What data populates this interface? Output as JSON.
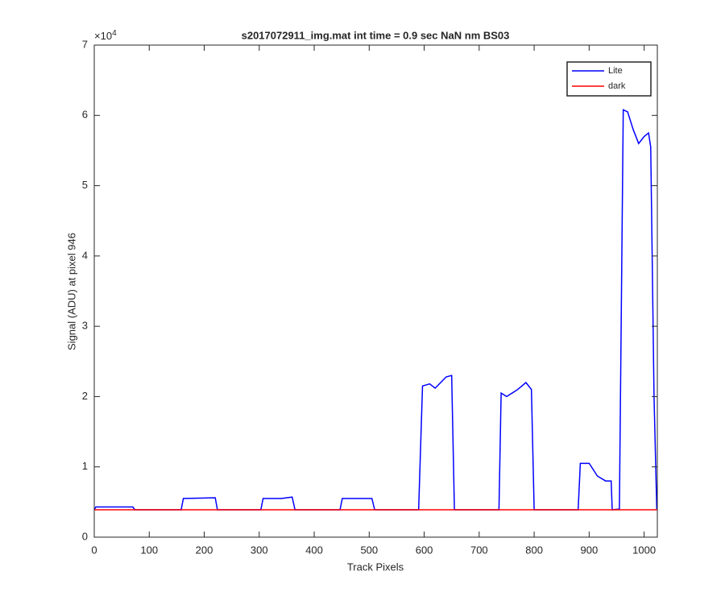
{
  "chart_data": {
    "type": "line",
    "title": "s2017072911_img.mat int time = 0.9 sec  NaN nm BS03",
    "x_label": "Track Pixels",
    "y_label": "Signal (ADU) at pixel 946",
    "y_exponent": {
      "base": "×10",
      "power": "4"
    },
    "xlim": [
      0,
      1024
    ],
    "ylim": [
      0,
      70000
    ],
    "xticks": [
      0,
      100,
      200,
      300,
      400,
      500,
      600,
      700,
      800,
      900,
      1000
    ],
    "yticks": [
      {
        "value": 0,
        "label": "0"
      },
      {
        "value": 10000,
        "label": "1"
      },
      {
        "value": 20000,
        "label": "2"
      },
      {
        "value": 30000,
        "label": "3"
      },
      {
        "value": 40000,
        "label": "4"
      },
      {
        "value": 50000,
        "label": "5"
      },
      {
        "value": 60000,
        "label": "6"
      },
      {
        "value": 70000,
        "label": "7"
      }
    ],
    "grid": false,
    "legend": "top-right",
    "series": [
      {
        "name": "Lite",
        "color": "#0000ff",
        "x": [
          0,
          3,
          70,
          74,
          158,
          162,
          220,
          224,
          303,
          307,
          340,
          360,
          365,
          447,
          451,
          505,
          510,
          590,
          597,
          610,
          620,
          640,
          650,
          655,
          736,
          740,
          750,
          770,
          785,
          795,
          800,
          880,
          884,
          900,
          915,
          930,
          940,
          942,
          955,
          962,
          970,
          980,
          990,
          1000,
          1008,
          1012,
          1018,
          1023
        ],
        "values": [
          3900,
          4300,
          4300,
          3900,
          3900,
          5500,
          5600,
          3900,
          3900,
          5500,
          5500,
          5700,
          3900,
          3900,
          5500,
          5500,
          3900,
          3900,
          21500,
          21800,
          21200,
          22800,
          23000,
          3900,
          3900,
          20500,
          20000,
          21000,
          22000,
          21000,
          3900,
          3900,
          10500,
          10500,
          8700,
          8000,
          8000,
          3900,
          4000,
          60800,
          60500,
          58000,
          56000,
          57000,
          57500,
          55500,
          20000,
          4000
        ]
      },
      {
        "name": "dark",
        "color": "#ff0000",
        "x": [
          0,
          1024
        ],
        "values": [
          3900,
          3900
        ]
      }
    ]
  }
}
